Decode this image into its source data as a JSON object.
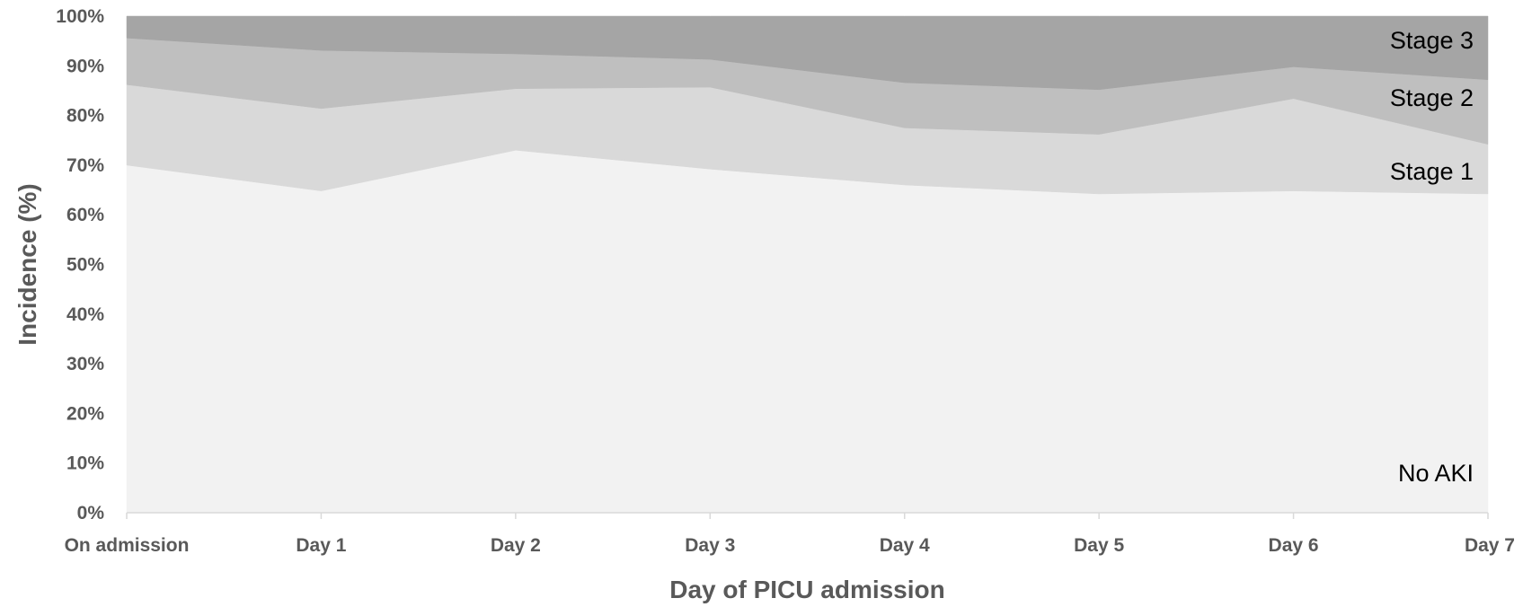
{
  "chart_data": {
    "type": "area",
    "stacked": true,
    "normalized_percent": true,
    "title": "",
    "xlabel": "Day of PICU admission",
    "ylabel": "Incidence (%)",
    "categories": [
      "On admission",
      "Day 1",
      "Day 2",
      "Day 3",
      "Day 4",
      "Day 5",
      "Day 6",
      "Day 7"
    ],
    "ylim": [
      0,
      100
    ],
    "yticks": [
      "0%",
      "10%",
      "20%",
      "30%",
      "40%",
      "50%",
      "60%",
      "70%",
      "80%",
      "90%",
      "100%"
    ],
    "grid": false,
    "legend": "inline labels at right",
    "series": [
      {
        "name": "No AKI",
        "values": [
          70,
          64.8,
          73,
          69.2,
          66,
          64.2,
          64.8,
          64.2
        ],
        "color": "#f2f2f2"
      },
      {
        "name": "Stage 1",
        "values": [
          16.2,
          16.6,
          12.4,
          16.5,
          11.5,
          12,
          18.6,
          10
        ],
        "color": "#d9d9d9"
      },
      {
        "name": "Stage 2",
        "values": [
          9.4,
          11.7,
          7,
          5.6,
          9.1,
          9,
          6.4,
          13
        ],
        "color": "#bfbfbf"
      },
      {
        "name": "Stage 3",
        "values": [
          4.4,
          6.9,
          7.6,
          8.7,
          13.4,
          14.8,
          10.2,
          12.8
        ],
        "color": "#a5a5a5"
      }
    ]
  }
}
